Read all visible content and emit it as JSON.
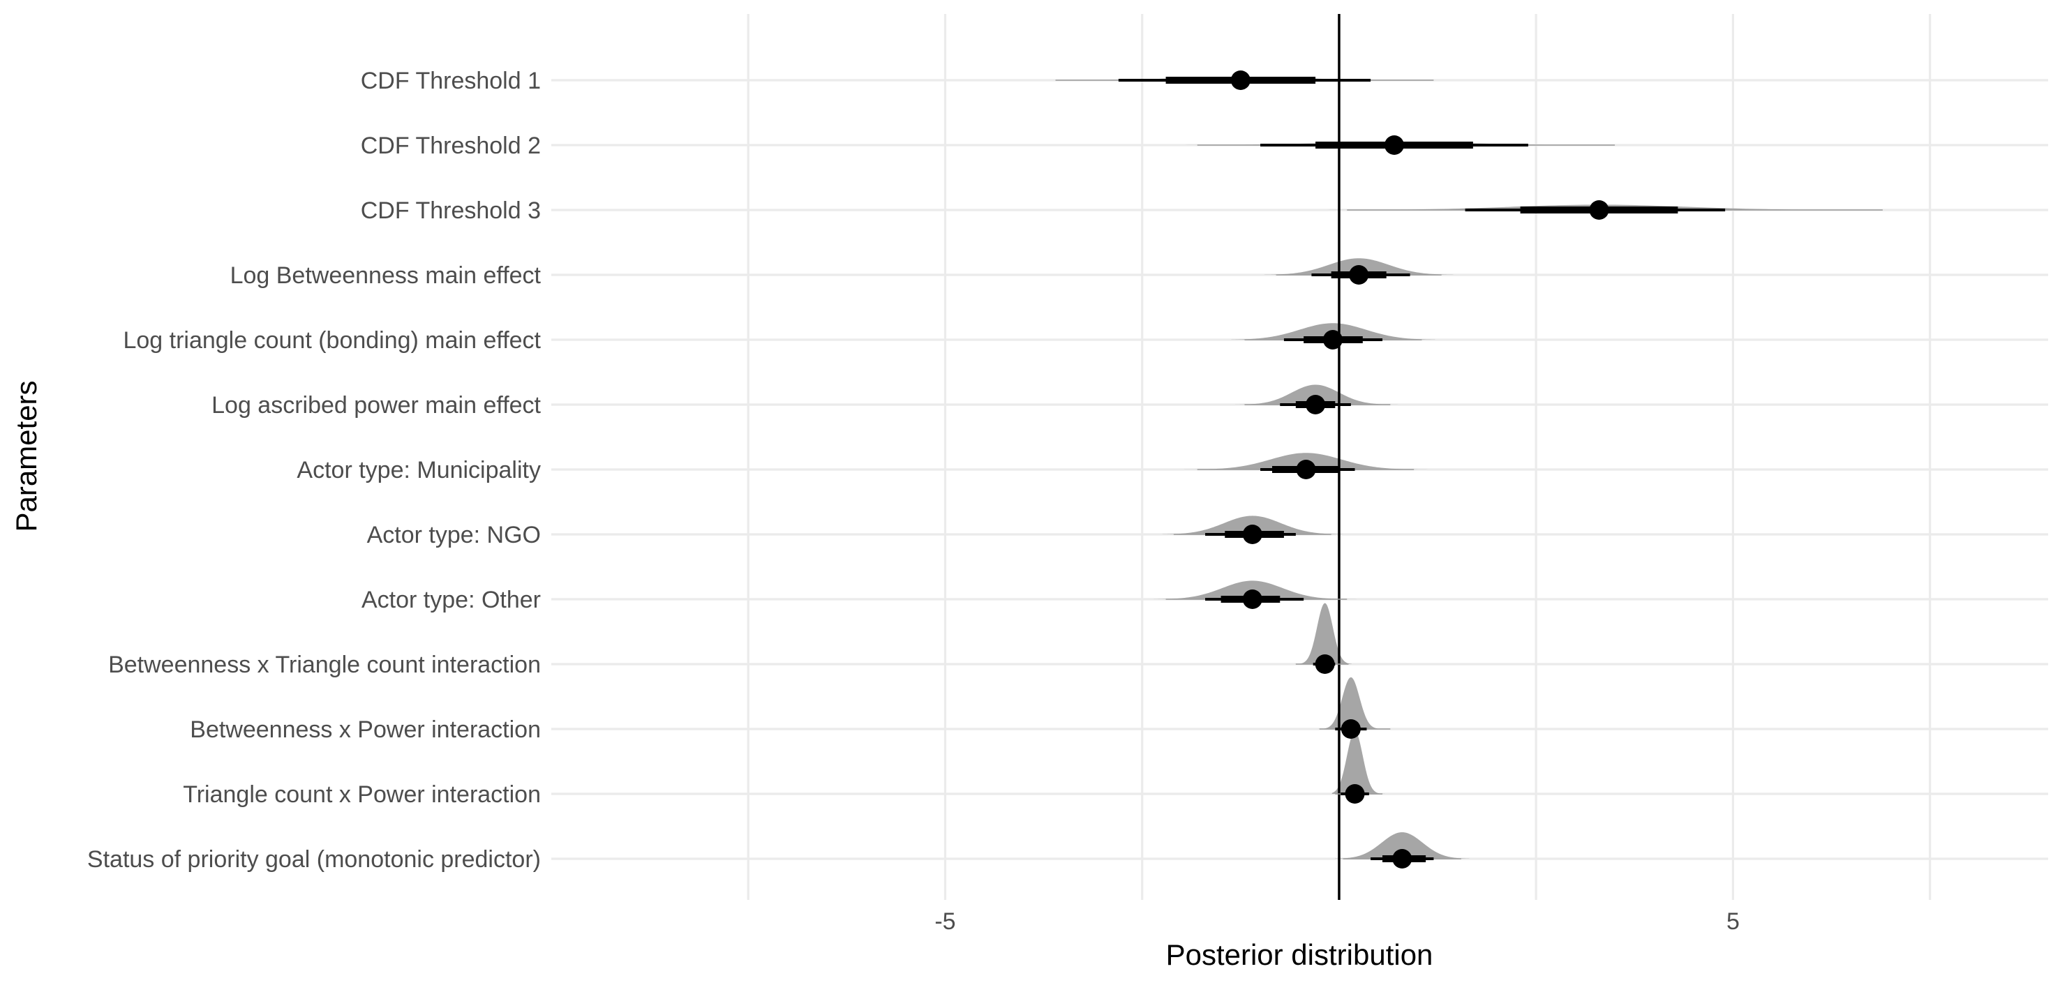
{
  "chart_data": {
    "type": "interval",
    "title": "",
    "xlabel": "Posterior distribution",
    "ylabel": "Parameters",
    "xlim": [
      -10,
      9
    ],
    "x_ticks": [
      -5,
      0,
      5
    ],
    "x_tick_labels": [
      "-5",
      "",
      "5"
    ],
    "x_minor_grid": [
      -7.5,
      -2.5,
      2.5,
      7.5
    ],
    "reference_line_x": 0,
    "grid": true,
    "legend": "none",
    "colors": {
      "density": "#a6a6a6",
      "point_interval": "#000000",
      "grid": "#ebebeb",
      "text": "#4d4d4d",
      "title_text": "#000000"
    },
    "parameters": [
      {
        "label": "CDF Threshold 1",
        "median": -1.25,
        "inner": [
          -2.2,
          -0.3
        ],
        "mid": [
          -2.8,
          0.4
        ],
        "outer": [
          -3.6,
          1.2
        ],
        "density_sd": 0.8,
        "density_height": 0.05
      },
      {
        "label": "CDF Threshold 2",
        "median": 0.7,
        "inner": [
          -0.3,
          1.7
        ],
        "mid": [
          -1.0,
          2.4
        ],
        "outer": [
          -1.8,
          3.5
        ],
        "density_sd": 0.9,
        "density_height": 0.05
      },
      {
        "label": "CDF Threshold 3",
        "median": 3.3,
        "inner": [
          2.3,
          4.3
        ],
        "mid": [
          1.6,
          4.9
        ],
        "outer": [
          0.1,
          6.9
        ],
        "density_sd": 1.1,
        "density_height": 0.08
      },
      {
        "label": "Log Betweenness main effect",
        "median": 0.25,
        "inner": [
          -0.1,
          0.6
        ],
        "mid": [
          -0.35,
          0.9
        ],
        "outer": [
          -0.8,
          1.3
        ],
        "density_sd": 0.38,
        "density_height": 0.25
      },
      {
        "label": "Log triangle count (bonding) main effect",
        "median": -0.08,
        "inner": [
          -0.45,
          0.3
        ],
        "mid": [
          -0.7,
          0.55
        ],
        "outer": [
          -1.2,
          1.05
        ],
        "density_sd": 0.42,
        "density_height": 0.25
      },
      {
        "label": "Log ascribed power main effect",
        "median": -0.3,
        "inner": [
          -0.55,
          -0.05
        ],
        "mid": [
          -0.75,
          0.15
        ],
        "outer": [
          -1.2,
          0.65
        ],
        "density_sd": 0.3,
        "density_height": 0.3
      },
      {
        "label": "Actor type: Municipality",
        "median": -0.42,
        "inner": [
          -0.85,
          0.0
        ],
        "mid": [
          -1.0,
          0.2
        ],
        "outer": [
          -1.8,
          0.95
        ],
        "density_sd": 0.45,
        "density_height": 0.25
      },
      {
        "label": "Actor type: NGO",
        "median": -1.1,
        "inner": [
          -1.45,
          -0.7
        ],
        "mid": [
          -1.7,
          -0.55
        ],
        "outer": [
          -2.1,
          -0.1
        ],
        "density_sd": 0.36,
        "density_height": 0.28
      },
      {
        "label": "Actor type: Other",
        "median": -1.1,
        "inner": [
          -1.5,
          -0.75
        ],
        "mid": [
          -1.7,
          -0.45
        ],
        "outer": [
          -2.2,
          0.1
        ],
        "density_sd": 0.38,
        "density_height": 0.28
      },
      {
        "label": "Betweenness x Triangle count interaction",
        "median": -0.18,
        "inner": [
          -0.28,
          -0.1
        ],
        "mid": [
          -0.33,
          -0.05
        ],
        "outer": [
          -0.55,
          0.12
        ],
        "density_sd": 0.1,
        "density_height": 0.92
      },
      {
        "label": "Betweenness x Power interaction",
        "median": 0.15,
        "inner": [
          0.05,
          0.25
        ],
        "mid": [
          -0.05,
          0.35
        ],
        "outer": [
          -0.25,
          0.65
        ],
        "density_sd": 0.11,
        "density_height": 0.78
      },
      {
        "label": "Triangle count x Power interaction",
        "median": 0.2,
        "inner": [
          0.12,
          0.3
        ],
        "mid": [
          0.02,
          0.38
        ],
        "outer": [
          -0.05,
          0.55
        ],
        "density_sd": 0.1,
        "density_height": 0.95
      },
      {
        "label": "Status of priority goal (monotonic predictor)",
        "median": 0.8,
        "inner": [
          0.55,
          1.1
        ],
        "mid": [
          0.4,
          1.2
        ],
        "outer": [
          0.05,
          1.55
        ],
        "density_sd": 0.26,
        "density_height": 0.4
      }
    ]
  }
}
